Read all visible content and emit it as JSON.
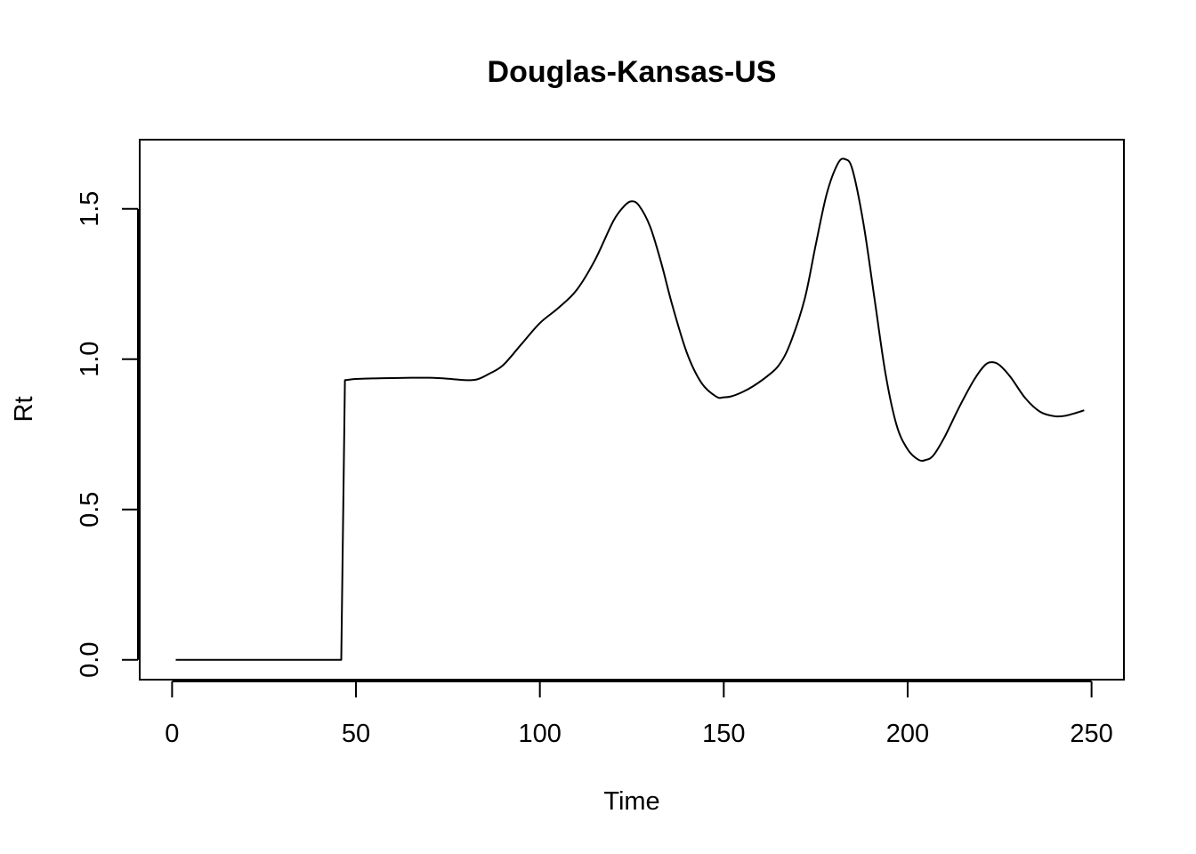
{
  "chart_data": {
    "type": "line",
    "title": "Douglas-Kansas-US",
    "xlabel": "Time",
    "ylabel": "Rt",
    "xlim": [
      -8.8,
      258.8
    ],
    "ylim": [
      -0.066,
      1.73
    ],
    "x_ticks": [
      0,
      50,
      100,
      150,
      200,
      250
    ],
    "x_tick_labels": [
      "0",
      "50",
      "100",
      "150",
      "200",
      "250"
    ],
    "y_ticks": [
      0.0,
      0.5,
      1.0,
      1.5
    ],
    "y_tick_labels": [
      "0.0",
      "0.5",
      "1.0",
      "1.5"
    ],
    "grid": false,
    "line_color": "#000000",
    "series": [
      {
        "x": [
          1,
          10,
          20,
          30,
          40,
          46,
          47,
          50,
          55,
          60,
          65,
          70,
          75,
          80,
          83,
          86,
          90,
          95,
          100,
          105,
          110,
          115,
          120,
          123,
          125,
          127,
          130,
          133,
          136,
          140,
          144,
          148,
          150,
          152,
          155,
          158,
          162,
          165,
          168,
          172,
          175,
          178,
          181,
          183,
          185,
          188,
          191,
          194,
          197,
          200,
          203,
          205,
          207,
          210,
          214,
          218,
          221,
          223,
          225,
          228,
          232,
          236,
          240,
          243,
          246,
          248
        ],
        "y": [
          0,
          0,
          0,
          0,
          0,
          0,
          0.93,
          0.934,
          0.936,
          0.937,
          0.938,
          0.938,
          0.935,
          0.93,
          0.933,
          0.95,
          0.98,
          1.05,
          1.12,
          1.17,
          1.23,
          1.33,
          1.46,
          1.51,
          1.525,
          1.51,
          1.44,
          1.32,
          1.18,
          1.02,
          0.92,
          0.875,
          0.873,
          0.876,
          0.89,
          0.91,
          0.945,
          0.98,
          1.05,
          1.2,
          1.38,
          1.55,
          1.65,
          1.665,
          1.63,
          1.45,
          1.2,
          0.95,
          0.78,
          0.7,
          0.665,
          0.665,
          0.68,
          0.74,
          0.84,
          0.93,
          0.98,
          0.99,
          0.98,
          0.94,
          0.87,
          0.825,
          0.81,
          0.812,
          0.822,
          0.83
        ]
      }
    ]
  }
}
